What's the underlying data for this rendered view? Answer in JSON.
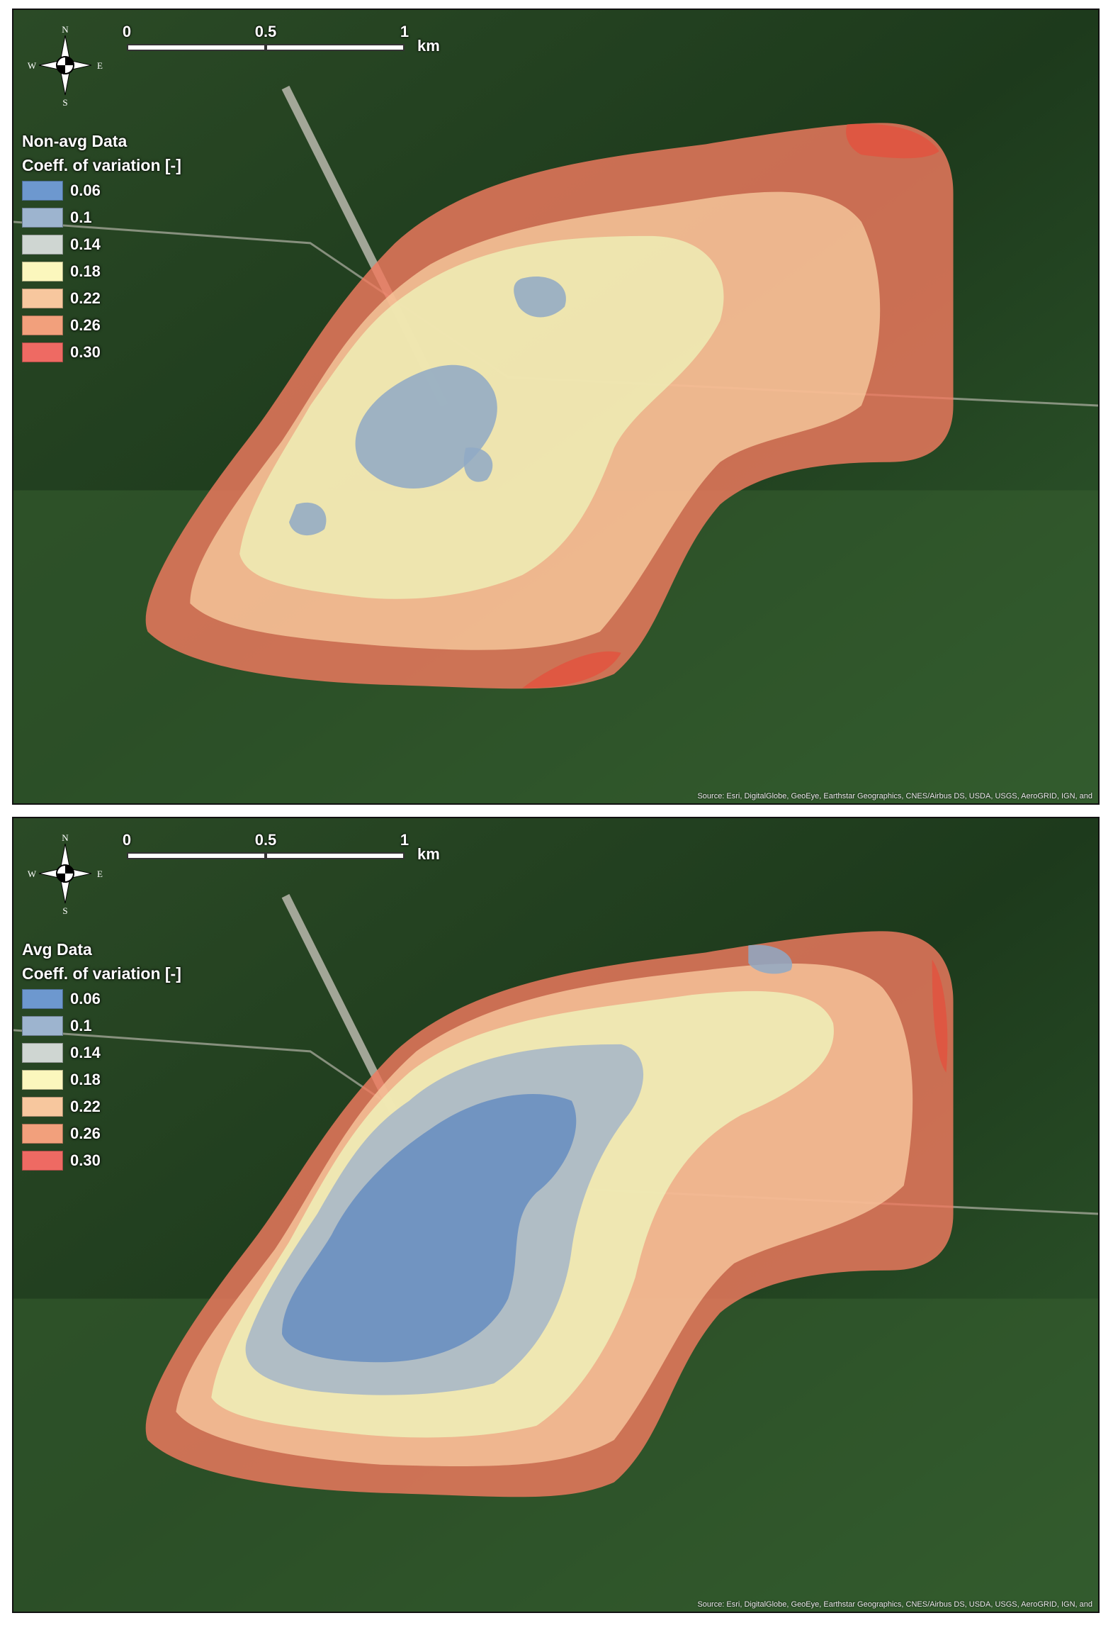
{
  "scale_bar": {
    "labels": [
      "0",
      "0.5",
      "1"
    ],
    "unit": "km"
  },
  "compass": {
    "n": "N",
    "s": "S",
    "e": "E",
    "w": "W"
  },
  "legend_items": [
    {
      "label": "0.06",
      "color": "#6d98cf"
    },
    {
      "label": "0.1",
      "color": "#9db4cf"
    },
    {
      "label": "0.14",
      "color": "#cfd6d2"
    },
    {
      "label": "0.18",
      "color": "#fbf7bd"
    },
    {
      "label": "0.22",
      "color": "#f7c79e"
    },
    {
      "label": "0.26",
      "color": "#f2a07c"
    },
    {
      "label": "0.30",
      "color": "#ee6a63"
    }
  ],
  "panels": [
    {
      "title": "Non-avg Data",
      "subtitle": "Coeff. of variation [-]"
    },
    {
      "title": "Avg Data",
      "subtitle": "Coeff. of variation [-]"
    }
  ],
  "attribution": "Source: Esri, DigitalGlobe, GeoEye, Earthstar Geographics, CNES/Airbus DS, USDA, USGS, AeroGRID, IGN, and",
  "colors": {
    "forest": "#1f3d1e",
    "fields": "#3e6a34",
    "road": "#c9c4bc"
  }
}
